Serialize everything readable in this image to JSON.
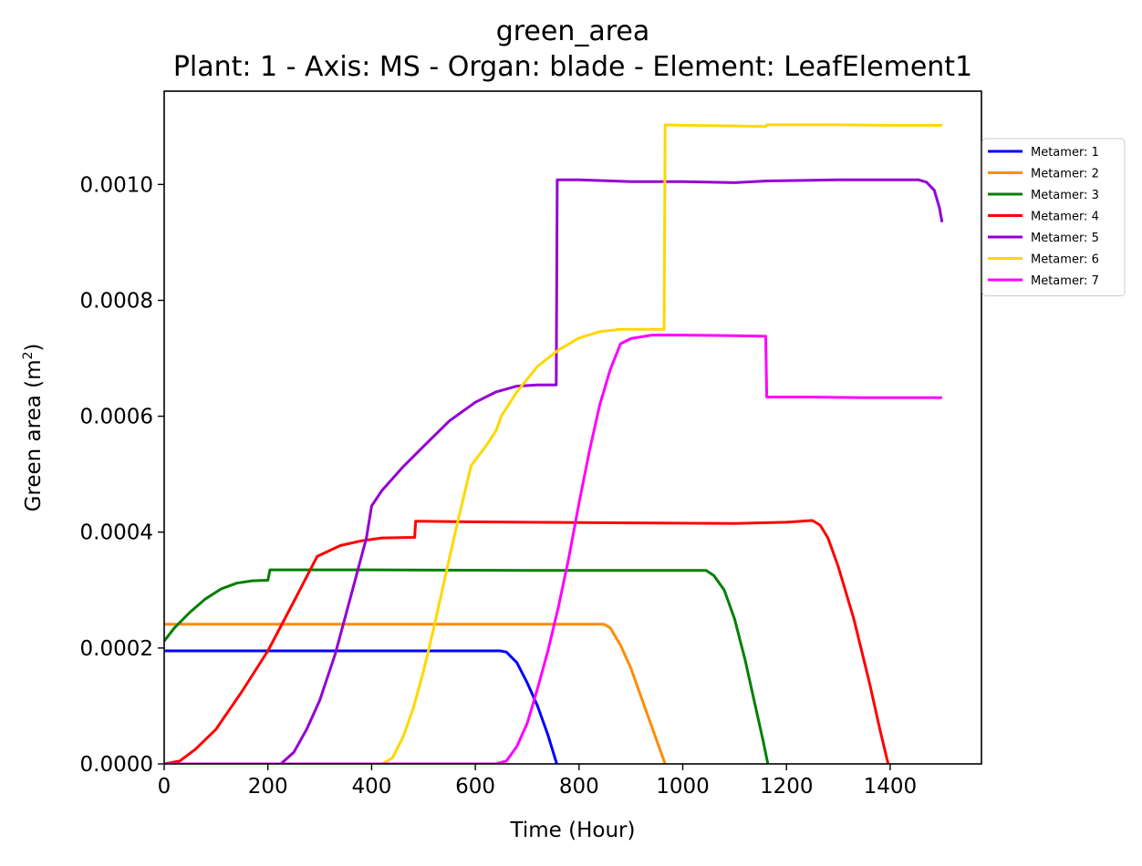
{
  "chart_data": {
    "type": "line",
    "title": "green_area",
    "subtitle": "Plant: 1 - Axis: MS - Organ: blade - Element: LeafElement1",
    "xlabel": "Time (Hour)",
    "ylabel": "Green area (m",
    "ylabel_sup": "2",
    "ylabel_close": ")",
    "xlim": [
      0,
      1576
    ],
    "ylim": [
      0,
      0.001161
    ],
    "xticks": [
      0,
      200,
      400,
      600,
      800,
      1000,
      1200,
      1400
    ],
    "xtick_labels": [
      "0",
      "200",
      "400",
      "600",
      "800",
      "1000",
      "1200",
      "1400"
    ],
    "yticks": [
      0,
      0.0002,
      0.0004,
      0.0006,
      0.0008,
      0.001
    ],
    "ytick_labels": [
      "0.0000",
      "0.0002",
      "0.0004",
      "0.0006",
      "0.0008",
      "0.0010"
    ],
    "legend_position": "outside-right",
    "grid": false,
    "series": [
      {
        "name": "Metamer: 1",
        "color": "#0000ff",
        "points": [
          [
            0,
            0.000195
          ],
          [
            200,
            0.000195
          ],
          [
            400,
            0.000195
          ],
          [
            648,
            0.000195
          ],
          [
            660,
            0.000193
          ],
          [
            680,
            0.000175
          ],
          [
            700,
            0.00014
          ],
          [
            720,
            0.0001
          ],
          [
            740,
            5e-05
          ],
          [
            757,
            0
          ]
        ]
      },
      {
        "name": "Metamer: 2",
        "color": "#ff8c00",
        "points": [
          [
            0,
            0.000241
          ],
          [
            300,
            0.000241
          ],
          [
            600,
            0.000241
          ],
          [
            848,
            0.000241
          ],
          [
            860,
            0.000235
          ],
          [
            880,
            0.000205
          ],
          [
            900,
            0.000165
          ],
          [
            920,
            0.000115
          ],
          [
            940,
            6.5e-05
          ],
          [
            966,
            0
          ]
        ]
      },
      {
        "name": "Metamer: 3",
        "color": "#008000",
        "points": [
          [
            0,
            0.000212
          ],
          [
            20,
            0.000235
          ],
          [
            50,
            0.000262
          ],
          [
            80,
            0.000285
          ],
          [
            110,
            0.000302
          ],
          [
            140,
            0.000312
          ],
          [
            170,
            0.000316
          ],
          [
            200,
            0.000317
          ],
          [
            204,
            0.000335
          ],
          [
            400,
            0.000335
          ],
          [
            700,
            0.000334
          ],
          [
            1000,
            0.000334
          ],
          [
            1045,
            0.000334
          ],
          [
            1060,
            0.000325
          ],
          [
            1080,
            0.0003
          ],
          [
            1100,
            0.00025
          ],
          [
            1120,
            0.00018
          ],
          [
            1140,
            0.0001
          ],
          [
            1155,
            4e-05
          ],
          [
            1164,
            0
          ]
        ]
      },
      {
        "name": "Metamer: 4",
        "color": "#ff0000",
        "points": [
          [
            0,
            0
          ],
          [
            30,
            5e-06
          ],
          [
            60,
            2.5e-05
          ],
          [
            100,
            6e-05
          ],
          [
            150,
            0.000125
          ],
          [
            200,
            0.000195
          ],
          [
            250,
            0.00028
          ],
          [
            295,
            0.000358
          ],
          [
            340,
            0.000377
          ],
          [
            380,
            0.000385
          ],
          [
            420,
            0.00039
          ],
          [
            483,
            0.000391
          ],
          [
            485,
            0.000419
          ],
          [
            560,
            0.000418
          ],
          [
            700,
            0.000417
          ],
          [
            900,
            0.000416
          ],
          [
            1100,
            0.000415
          ],
          [
            1200,
            0.000417
          ],
          [
            1250,
            0.00042
          ],
          [
            1265,
            0.000412
          ],
          [
            1280,
            0.00039
          ],
          [
            1300,
            0.00034
          ],
          [
            1330,
            0.00025
          ],
          [
            1360,
            0.00014
          ],
          [
            1380,
            6e-05
          ],
          [
            1396,
            0
          ]
        ]
      },
      {
        "name": "Metamer: 5",
        "color": "#9400d3",
        "points": [
          [
            0,
            0
          ],
          [
            225,
            0
          ],
          [
            250,
            2e-05
          ],
          [
            275,
            6e-05
          ],
          [
            300,
            0.00011
          ],
          [
            330,
            0.00019
          ],
          [
            360,
            0.00029
          ],
          [
            390,
            0.00039
          ],
          [
            400,
            0.000445
          ],
          [
            420,
            0.000472
          ],
          [
            460,
            0.000512
          ],
          [
            500,
            0.000548
          ],
          [
            550,
            0.000592
          ],
          [
            600,
            0.000624
          ],
          [
            640,
            0.000642
          ],
          [
            680,
            0.000652
          ],
          [
            720,
            0.000654
          ],
          [
            756,
            0.000654
          ],
          [
            758,
            0.001008
          ],
          [
            800,
            0.001008
          ],
          [
            900,
            0.001005
          ],
          [
            1000,
            0.001005
          ],
          [
            1100,
            0.001003
          ],
          [
            1162,
            0.001006
          ],
          [
            1300,
            0.001008
          ],
          [
            1455,
            0.001008
          ],
          [
            1470,
            0.001004
          ],
          [
            1485,
            0.00099
          ],
          [
            1495,
            0.00096
          ],
          [
            1500,
            0.000935
          ]
        ]
      },
      {
        "name": "Metamer: 6",
        "color": "#ffd700",
        "points": [
          [
            0,
            0
          ],
          [
            420,
            0
          ],
          [
            440,
            1e-05
          ],
          [
            460,
            4.5e-05
          ],
          [
            480,
            9.5e-05
          ],
          [
            500,
            0.00016
          ],
          [
            520,
            0.000235
          ],
          [
            540,
            0.000315
          ],
          [
            560,
            0.000395
          ],
          [
            580,
            0.00047
          ],
          [
            592,
            0.000515
          ],
          [
            620,
            0.000548
          ],
          [
            640,
            0.000575
          ],
          [
            650,
            0.0006
          ],
          [
            680,
            0.000642
          ],
          [
            720,
            0.000686
          ],
          [
            760,
            0.000714
          ],
          [
            800,
            0.000735
          ],
          [
            840,
            0.000746
          ],
          [
            880,
            0.00075
          ],
          [
            964,
            0.00075
          ],
          [
            966,
            0.001103
          ],
          [
            1000,
            0.001102
          ],
          [
            1100,
            0.001101
          ],
          [
            1160,
            0.0011
          ],
          [
            1162,
            0.001103
          ],
          [
            1300,
            0.001103
          ],
          [
            1400,
            0.001102
          ],
          [
            1500,
            0.001102
          ]
        ]
      },
      {
        "name": "Metamer: 7",
        "color": "#ff00ff",
        "points": [
          [
            0,
            0
          ],
          [
            640,
            0
          ],
          [
            660,
            5e-06
          ],
          [
            680,
            3e-05
          ],
          [
            700,
            7e-05
          ],
          [
            720,
            0.00013
          ],
          [
            740,
            0.000195
          ],
          [
            760,
            0.00027
          ],
          [
            780,
            0.000355
          ],
          [
            800,
            0.00045
          ],
          [
            820,
            0.00054
          ],
          [
            840,
            0.00062
          ],
          [
            860,
            0.00068
          ],
          [
            880,
            0.000725
          ],
          [
            900,
            0.000734
          ],
          [
            940,
            0.00074
          ],
          [
            1000,
            0.00074
          ],
          [
            1100,
            0.000739
          ],
          [
            1160,
            0.000738
          ],
          [
            1162,
            0.000633
          ],
          [
            1250,
            0.000633
          ],
          [
            1350,
            0.000632
          ],
          [
            1500,
            0.000632
          ]
        ]
      }
    ]
  }
}
